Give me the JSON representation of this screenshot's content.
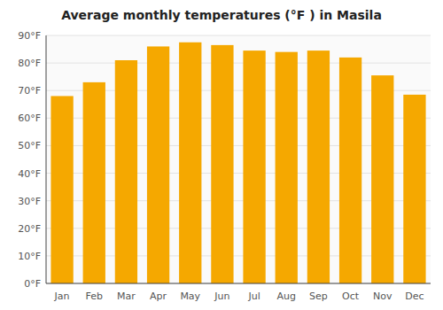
{
  "chart_data": {
    "type": "bar",
    "title": "Average monthly temperatures (°F ) in Masila",
    "categories": [
      "Jan",
      "Feb",
      "Mar",
      "Apr",
      "May",
      "Jun",
      "Jul",
      "Aug",
      "Sep",
      "Oct",
      "Nov",
      "Dec"
    ],
    "values": [
      68,
      73,
      81,
      86,
      87.5,
      86.5,
      84.5,
      84,
      84.5,
      82,
      75.5,
      68.5
    ],
    "color": "#F5A800",
    "ylim": [
      0,
      90
    ],
    "yticks": [
      {
        "value": 0,
        "label": "0°F"
      },
      {
        "value": 10,
        "label": "10°F"
      },
      {
        "value": 20,
        "label": "20°F"
      },
      {
        "value": 30,
        "label": "30°F"
      },
      {
        "value": 40,
        "label": "40°F"
      },
      {
        "value": 50,
        "label": "50°F"
      },
      {
        "value": 60,
        "label": "60°F"
      },
      {
        "value": 70,
        "label": "70°F"
      },
      {
        "value": 80,
        "label": "80°F"
      },
      {
        "value": 90,
        "label": "90°F"
      }
    ],
    "grid": true
  }
}
